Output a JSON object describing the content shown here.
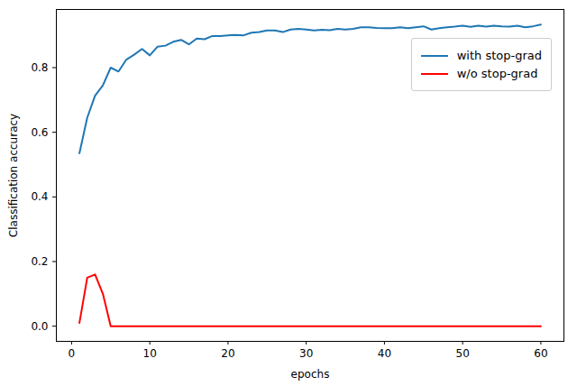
{
  "chart_data": {
    "type": "line",
    "x_label": "epochs",
    "y_label": "Classification accuracy",
    "x": [
      1,
      2,
      3,
      4,
      5,
      6,
      7,
      8,
      9,
      10,
      11,
      12,
      13,
      14,
      15,
      16,
      17,
      18,
      19,
      20,
      21,
      22,
      23,
      24,
      25,
      26,
      27,
      28,
      29,
      30,
      31,
      32,
      33,
      34,
      35,
      36,
      37,
      38,
      39,
      40,
      41,
      42,
      43,
      44,
      45,
      46,
      47,
      48,
      49,
      50,
      51,
      52,
      53,
      54,
      55,
      56,
      57,
      58,
      59,
      60
    ],
    "series": [
      {
        "name": "with stop-grad",
        "color": "#1f77b4",
        "values": [
          0.535,
          0.645,
          0.713,
          0.745,
          0.8,
          0.788,
          0.825,
          0.84,
          0.858,
          0.838,
          0.865,
          0.868,
          0.88,
          0.886,
          0.872,
          0.89,
          0.888,
          0.898,
          0.898,
          0.9,
          0.901,
          0.9,
          0.908,
          0.91,
          0.915,
          0.915,
          0.91,
          0.918,
          0.92,
          0.918,
          0.915,
          0.917,
          0.916,
          0.92,
          0.918,
          0.92,
          0.925,
          0.925,
          0.923,
          0.922,
          0.922,
          0.925,
          0.922,
          0.925,
          0.928,
          0.918,
          0.922,
          0.925,
          0.927,
          0.93,
          0.926,
          0.93,
          0.927,
          0.93,
          0.928,
          0.927,
          0.93,
          0.925,
          0.928,
          0.933
        ]
      },
      {
        "name": "w/o stop-grad",
        "color": "#ff0000",
        "values": [
          0.01,
          0.15,
          0.16,
          0.1,
          0,
          0,
          0,
          0,
          0,
          0,
          0,
          0,
          0,
          0,
          0,
          0,
          0,
          0,
          0,
          0,
          0,
          0,
          0,
          0,
          0,
          0,
          0,
          0,
          0,
          0,
          0,
          0,
          0,
          0,
          0,
          0,
          0,
          0,
          0,
          0,
          0,
          0,
          0,
          0,
          0,
          0,
          0,
          0,
          0,
          0,
          0,
          0,
          0,
          0,
          0,
          0,
          0,
          0,
          0,
          0
        ]
      }
    ],
    "xlim": [
      -1.95,
      62.95
    ],
    "xticks": [
      0,
      10,
      20,
      30,
      40,
      50,
      60
    ],
    "ylim": [
      -0.047,
      0.98
    ],
    "yticks": [
      {
        "value": 0,
        "label": "0.0"
      },
      {
        "value": 0.2,
        "label": "0.2"
      },
      {
        "value": 0.4,
        "label": "0.4"
      },
      {
        "value": 0.6,
        "label": "0.6"
      },
      {
        "value": 0.8,
        "label": "0.8"
      }
    ],
    "grid": false,
    "legend": "upper right"
  }
}
